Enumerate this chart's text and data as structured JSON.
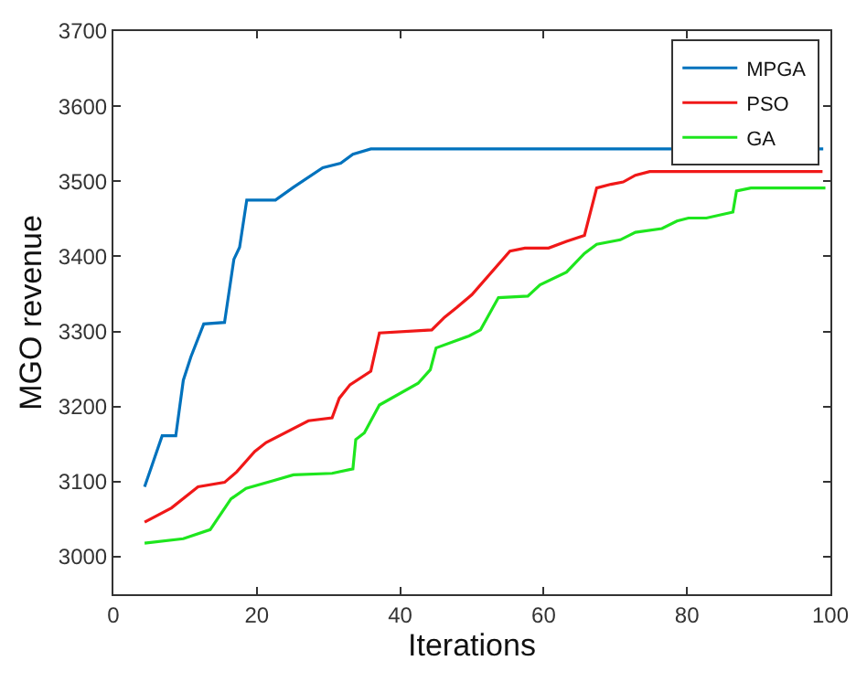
{
  "chart_data": {
    "type": "line",
    "xlabel": "Iterations",
    "ylabel": "MGO revenue",
    "xlim": [
      0,
      100
    ],
    "xticks": [
      0,
      20,
      40,
      60,
      80,
      100
    ],
    "ylim": [
      2950,
      3700
    ],
    "yticks": [
      3000,
      3100,
      3200,
      3300,
      3400,
      3500,
      3600,
      3700
    ],
    "grid": false,
    "legend": "top right",
    "marker": "none",
    "line_style": "solid",
    "series": [
      {
        "name": "MPGA",
        "color": "#0072bd",
        "x": [
          4.35,
          6.8,
          8.7,
          9.75,
          10.8,
          12.6,
          15.5,
          16.8,
          17.6,
          18.6,
          22.6,
          25.1,
          29.2,
          31.7,
          33.4,
          35.9,
          99
        ],
        "values": [
          3093,
          3161,
          3161,
          3235,
          3266,
          3310,
          3312,
          3396,
          3412,
          3475,
          3475,
          3492,
          3518,
          3524,
          3536,
          3543,
          3543
        ]
      },
      {
        "name": "PSO",
        "color": "#f01818",
        "x": [
          4.35,
          8.1,
          11.8,
          15.5,
          17.2,
          19.7,
          21.3,
          27.2,
          30.5,
          31.5,
          33,
          35.9,
          37.1,
          44.4,
          46.2,
          47.9,
          50,
          55.3,
          57.4,
          60.7,
          63.2,
          65.7,
          67.4,
          69.4,
          71.1,
          72.8,
          74.8,
          98.9
        ],
        "values": [
          3046,
          3065,
          3093,
          3099,
          3113,
          3140,
          3152,
          3181,
          3185,
          3211,
          3229,
          3247,
          3298,
          3302,
          3319,
          3332,
          3349,
          3407,
          3411,
          3411,
          3420,
          3428,
          3491,
          3496,
          3499,
          3508,
          3513,
          3513
        ]
      },
      {
        "name": "GA",
        "color": "#1ee61e",
        "x": [
          4.35,
          9.75,
          13.5,
          16.4,
          18.5,
          22.2,
          25.1,
          30.5,
          33.4,
          33.8,
          35,
          37.1,
          42.5,
          44.2,
          45,
          49.6,
          51.2,
          53.7,
          57.8,
          59.5,
          63.2,
          65.7,
          67.4,
          70.7,
          72.8,
          76.5,
          78.6,
          80.2,
          82.7,
          86.4,
          86.9,
          88.9,
          99.3
        ],
        "values": [
          3018,
          3024,
          3036,
          3077,
          3091,
          3101,
          3109,
          3111,
          3117,
          3156,
          3165,
          3202,
          3231,
          3249,
          3278,
          3294,
          3302,
          3345,
          3347,
          3362,
          3379,
          3404,
          3416,
          3422,
          3432,
          3437,
          3447,
          3451,
          3451,
          3459,
          3487,
          3491,
          3491
        ]
      }
    ]
  }
}
